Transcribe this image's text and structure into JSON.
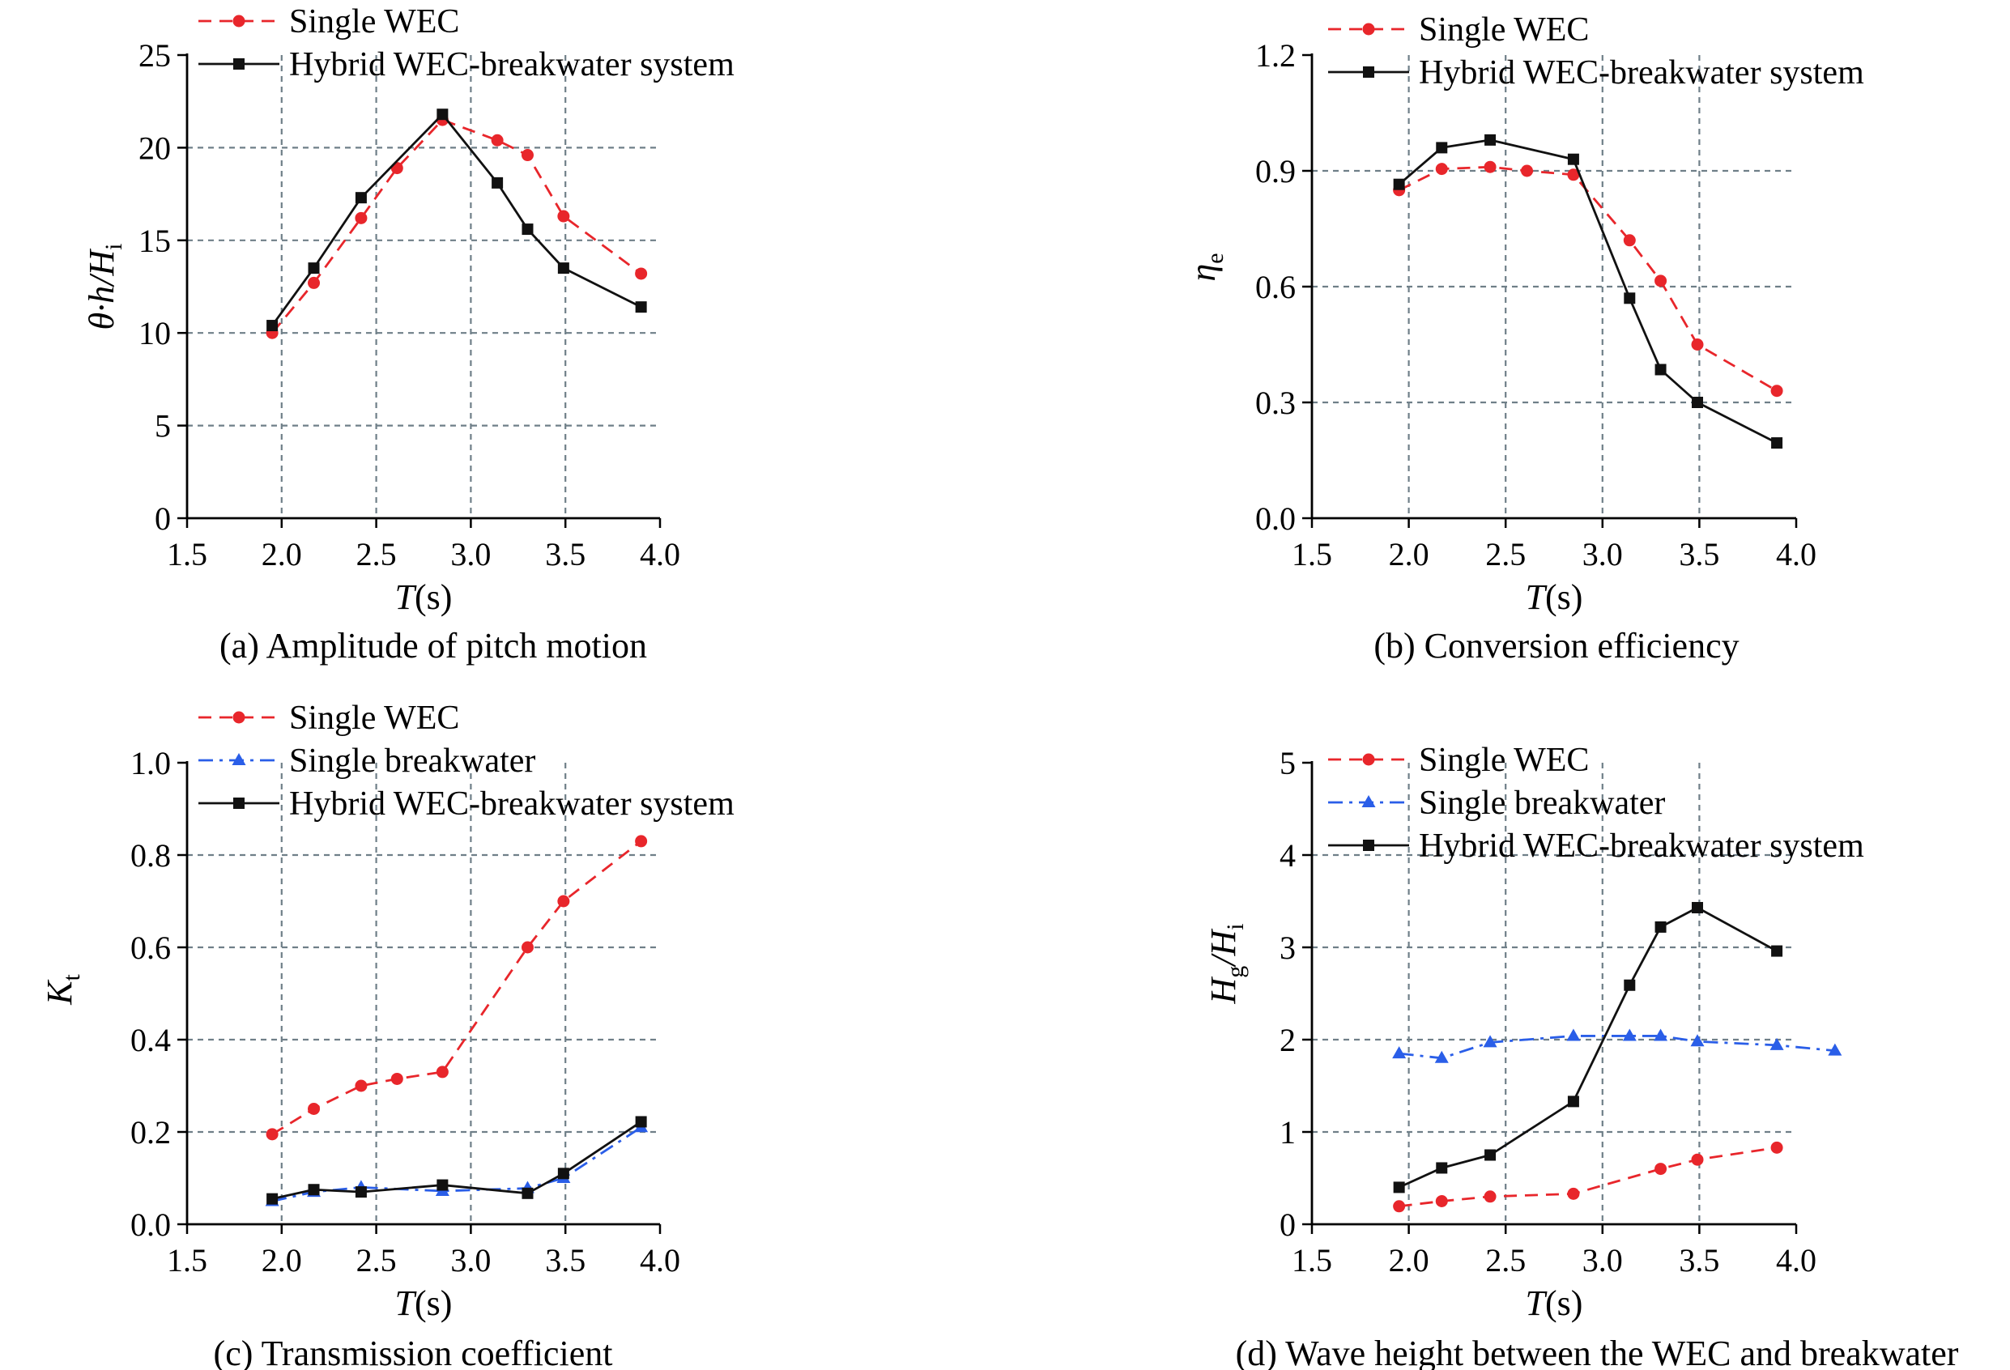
{
  "figure": {
    "panels": [
      {
        "caption": "(a) Amplitude of pitch motion",
        "ylabel": "θ·h/H",
        "ylabel_sub": "i",
        "xlabel_main": "T",
        "xlabel_unit": "(s)",
        "x_ticks": [
          "1.5",
          "2.0",
          "2.5",
          "3.0",
          "3.5",
          "4.0"
        ],
        "y_ticks": [
          "0",
          "5",
          "10",
          "15",
          "20",
          "25"
        ],
        "legend": [
          "Single WEC",
          "Hybrid WEC-breakwater system"
        ]
      },
      {
        "caption": "(b) Conversion efficiency",
        "ylabel": "η",
        "ylabel_sub": "e",
        "xlabel_main": "T",
        "xlabel_unit": "(s)",
        "x_ticks": [
          "1.5",
          "2.0",
          "2.5",
          "3.0",
          "3.5",
          "4.0"
        ],
        "y_ticks": [
          "0.0",
          "0.3",
          "0.6",
          "0.9",
          "1.2"
        ],
        "legend": [
          "Single WEC",
          "Hybrid WEC-breakwater system"
        ]
      },
      {
        "caption": "(c) Transmission coefficient",
        "ylabel": "K",
        "ylabel_sub": "t",
        "xlabel_main": "T",
        "xlabel_unit": "(s)",
        "x_ticks": [
          "1.5",
          "2.0",
          "2.5",
          "3.0",
          "3.5",
          "4.0"
        ],
        "y_ticks": [
          "0.0",
          "0.2",
          "0.4",
          "0.6",
          "0.8",
          "1.0"
        ],
        "legend": [
          "Single WEC",
          "Single breakwater",
          "Hybrid WEC-breakwater system"
        ]
      },
      {
        "caption": "(d) Wave height between the WEC and breakwater",
        "ylabel": "H",
        "ylabel_sub": "g",
        "ylabel_mid": "/H",
        "ylabel_sub2": "i",
        "xlabel_main": "T",
        "xlabel_unit": "(s)",
        "x_ticks": [
          "1.5",
          "2.0",
          "2.5",
          "3.0",
          "3.5",
          "4.0"
        ],
        "y_ticks": [
          "0",
          "1",
          "2",
          "3",
          "4",
          "5"
        ],
        "legend": [
          "Single WEC",
          "Single breakwater",
          "Hybrid WEC-breakwater system"
        ]
      }
    ]
  },
  "colors": {
    "single_wec": "#e8262b",
    "single_breakwater": "#2a5ee8",
    "hybrid": "#111111",
    "grid": "#6f7f88"
  },
  "chart_data": [
    {
      "type": "line",
      "title": "(a) Amplitude of pitch motion",
      "xlabel": "T(s)",
      "ylabel": "θ·h/Hi",
      "xlim": [
        1.5,
        4.0
      ],
      "ylim": [
        0,
        25
      ],
      "grid": true,
      "legend_position": "top-left",
      "series": [
        {
          "name": "Single WEC",
          "marker": "circle",
          "style": "dashed",
          "x": [
            1.95,
            2.17,
            2.42,
            2.61,
            2.85,
            3.14,
            3.3,
            3.49,
            3.9
          ],
          "y": [
            10.0,
            12.7,
            16.2,
            18.9,
            21.5,
            20.4,
            19.6,
            16.3,
            13.2
          ]
        },
        {
          "name": "Hybrid WEC-breakwater system",
          "marker": "square",
          "style": "solid",
          "x": [
            1.95,
            2.17,
            2.42,
            2.85,
            3.14,
            3.3,
            3.49,
            3.9
          ],
          "y": [
            10.4,
            13.5,
            17.3,
            21.8,
            18.1,
            15.6,
            13.5,
            11.4
          ]
        }
      ]
    },
    {
      "type": "line",
      "title": "(b) Conversion efficiency",
      "xlabel": "T(s)",
      "ylabel": "ηe",
      "xlim": [
        1.5,
        4.0
      ],
      "ylim": [
        0,
        1.2
      ],
      "grid": true,
      "legend_position": "top-right",
      "series": [
        {
          "name": "Single WEC",
          "marker": "circle",
          "style": "dashed",
          "x": [
            1.95,
            2.17,
            2.42,
            2.61,
            2.85,
            3.14,
            3.3,
            3.49,
            3.9
          ],
          "y": [
            0.85,
            0.905,
            0.91,
            0.9,
            0.89,
            0.72,
            0.615,
            0.45,
            0.33
          ]
        },
        {
          "name": "Hybrid WEC-breakwater system",
          "marker": "square",
          "style": "solid",
          "x": [
            1.95,
            2.17,
            2.42,
            2.85,
            3.14,
            3.3,
            3.49,
            3.9
          ],
          "y": [
            0.865,
            0.96,
            0.98,
            0.93,
            0.57,
            0.385,
            0.3,
            0.195
          ]
        }
      ]
    },
    {
      "type": "line",
      "title": "(c) Transmission coefficient",
      "xlabel": "T(s)",
      "ylabel": "Kt",
      "xlim": [
        1.5,
        4.0
      ],
      "ylim": [
        0,
        1.0
      ],
      "grid": true,
      "legend_position": "top-left",
      "series": [
        {
          "name": "Single WEC",
          "marker": "circle",
          "style": "dashed",
          "x": [
            1.95,
            2.17,
            2.42,
            2.61,
            2.85,
            3.3,
            3.49,
            3.9
          ],
          "y": [
            0.195,
            0.25,
            0.3,
            0.315,
            0.33,
            0.6,
            0.7,
            0.83
          ]
        },
        {
          "name": "Single breakwater",
          "marker": "triangle",
          "style": "dashdot",
          "x": [
            1.95,
            2.17,
            2.42,
            2.85,
            3.3,
            3.49,
            3.9
          ],
          "y": [
            0.05,
            0.07,
            0.08,
            0.072,
            0.078,
            0.1,
            0.21
          ]
        },
        {
          "name": "Hybrid WEC-breakwater system",
          "marker": "square",
          "style": "solid",
          "x": [
            1.95,
            2.17,
            2.42,
            2.85,
            3.3,
            3.49,
            3.9
          ],
          "y": [
            0.055,
            0.075,
            0.07,
            0.085,
            0.067,
            0.11,
            0.222
          ]
        }
      ]
    },
    {
      "type": "line",
      "title": "(d) Wave height between the WEC and breakwater",
      "xlabel": "T(s)",
      "ylabel": "Hg/Hi",
      "xlim": [
        1.5,
        4.0
      ],
      "ylim": [
        0,
        5
      ],
      "grid": true,
      "legend_position": "top-right",
      "series": [
        {
          "name": "Single WEC",
          "marker": "circle",
          "style": "dashed",
          "x": [
            1.95,
            2.17,
            2.42,
            2.85,
            3.3,
            3.49,
            3.9
          ],
          "y": [
            0.195,
            0.25,
            0.3,
            0.33,
            0.6,
            0.7,
            0.83
          ]
        },
        {
          "name": "Single breakwater",
          "marker": "triangle",
          "style": "dashdot",
          "x": [
            1.95,
            2.17,
            2.42,
            2.85,
            3.14,
            3.3,
            3.49,
            3.9,
            4.2
          ],
          "y": [
            1.85,
            1.8,
            1.97,
            2.04,
            2.04,
            2.04,
            1.98,
            1.94,
            1.88
          ]
        },
        {
          "name": "Hybrid WEC-breakwater system",
          "marker": "square",
          "style": "solid",
          "x": [
            1.95,
            2.17,
            2.42,
            2.85,
            3.14,
            3.3,
            3.49,
            3.9
          ],
          "y": [
            0.4,
            0.61,
            0.75,
            1.33,
            2.59,
            3.22,
            3.43,
            2.96
          ]
        }
      ]
    }
  ]
}
